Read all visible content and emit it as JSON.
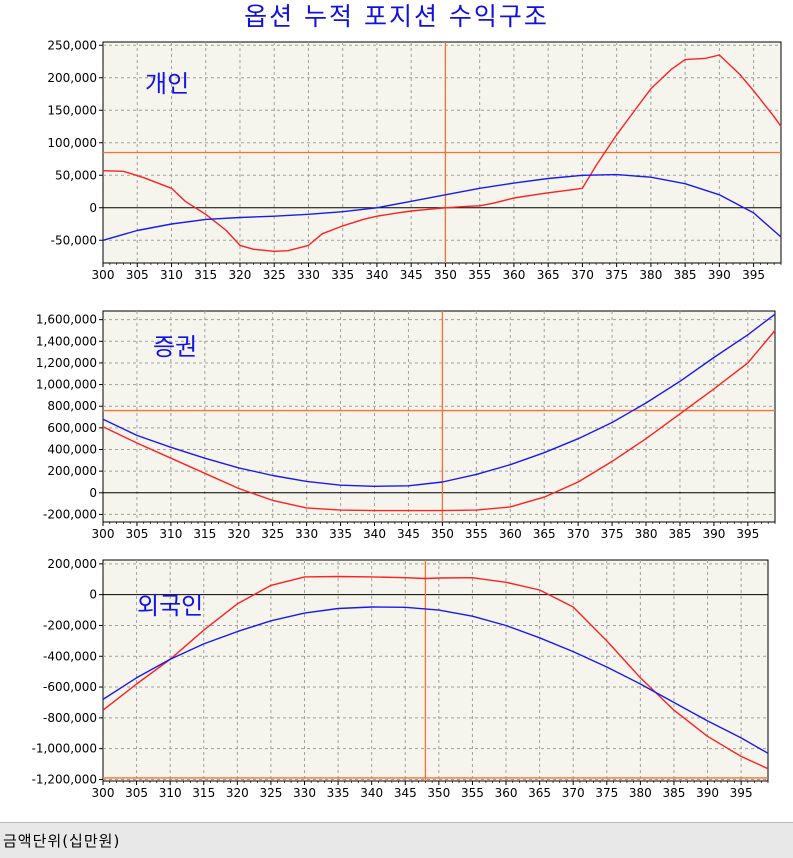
{
  "page": {
    "title": "옵션 누적 포지션 수익구조",
    "footer": "금액단위(십만원)"
  },
  "colors": {
    "series_red": "#ff2020",
    "series_blue": "#1a1aee",
    "reference_line": "#ff7030",
    "grid": "#a0a0a0",
    "plot_bg": "#f5f5ee",
    "label_blue": "#1212e6"
  },
  "chart_data": [
    {
      "type": "line",
      "title": "개인",
      "xlim": [
        300,
        399
      ],
      "ylim": [
        -85000,
        255000
      ],
      "x_ticks": [
        300,
        305,
        310,
        315,
        320,
        325,
        330,
        335,
        340,
        345,
        350,
        355,
        360,
        365,
        370,
        375,
        380,
        385,
        390,
        395
      ],
      "y_ticks": [
        -50000,
        0,
        50000,
        100000,
        150000,
        200000,
        250000
      ],
      "y_tick_labels": [
        "-50,000",
        "0",
        "50,000",
        "100,000",
        "150,000",
        "200,000",
        "250,000"
      ],
      "hline": 85000,
      "vline": 350,
      "grid": true,
      "series": [
        {
          "color": "#ff2020",
          "x": [
            300,
            303,
            306,
            310,
            312,
            315,
            318,
            320,
            322,
            325,
            327,
            330,
            332,
            335,
            338,
            340,
            343,
            345,
            348,
            350,
            353,
            355,
            357,
            360,
            363,
            365,
            368,
            370,
            372,
            375,
            378,
            380,
            383,
            385,
            388,
            390,
            393,
            395,
            398,
            399
          ],
          "y": [
            57000,
            56000,
            46000,
            30000,
            10000,
            -10000,
            -35000,
            -58000,
            -64000,
            -67000,
            -66000,
            -58000,
            -40000,
            -28000,
            -18000,
            -13000,
            -8000,
            -5000,
            -2000,
            0,
            2000,
            3000,
            7000,
            15000,
            20000,
            23000,
            27000,
            30000,
            65000,
            112000,
            155000,
            183000,
            213000,
            228000,
            230000,
            235000,
            205000,
            180000,
            140000,
            125000
          ]
        },
        {
          "color": "#1a1aee",
          "x": [
            300,
            305,
            310,
            315,
            320,
            325,
            330,
            335,
            340,
            345,
            350,
            355,
            360,
            365,
            370,
            375,
            380,
            385,
            390,
            395,
            399
          ],
          "y": [
            -50000,
            -35000,
            -25000,
            -18000,
            -15000,
            -13000,
            -10000,
            -6000,
            0,
            10000,
            20000,
            30000,
            38000,
            45000,
            50000,
            51000,
            47000,
            37000,
            20000,
            -8000,
            -45000
          ]
        }
      ]
    },
    {
      "type": "line",
      "title": "증권",
      "xlim": [
        300,
        399
      ],
      "ylim": [
        -270000,
        1680000
      ],
      "x_ticks": [
        300,
        305,
        310,
        315,
        320,
        325,
        330,
        335,
        340,
        345,
        350,
        355,
        360,
        365,
        370,
        375,
        380,
        385,
        390,
        395
      ],
      "y_ticks": [
        -200000,
        0,
        200000,
        400000,
        600000,
        800000,
        1000000,
        1200000,
        1400000,
        1600000
      ],
      "y_tick_labels": [
        "-200,000",
        "0",
        "200,000",
        "400,000",
        "600,000",
        "800,000",
        "1,000,000",
        "1,200,000",
        "1,400,000",
        "1,600,000"
      ],
      "hline": 760000,
      "vline": 350,
      "grid": true,
      "series": [
        {
          "color": "#ff2020",
          "x": [
            300,
            305,
            310,
            315,
            320,
            325,
            330,
            335,
            340,
            345,
            350,
            355,
            360,
            365,
            370,
            375,
            380,
            385,
            390,
            395,
            399
          ],
          "y": [
            610000,
            460000,
            320000,
            180000,
            40000,
            -70000,
            -140000,
            -160000,
            -165000,
            -165000,
            -165000,
            -160000,
            -130000,
            -40000,
            100000,
            290000,
            500000,
            730000,
            960000,
            1200000,
            1500000
          ]
        },
        {
          "color": "#1a1aee",
          "x": [
            300,
            305,
            310,
            315,
            320,
            325,
            330,
            335,
            340,
            345,
            350,
            355,
            360,
            365,
            370,
            375,
            380,
            385,
            390,
            395,
            399
          ],
          "y": [
            680000,
            530000,
            420000,
            320000,
            230000,
            160000,
            105000,
            70000,
            60000,
            65000,
            100000,
            170000,
            260000,
            370000,
            500000,
            650000,
            830000,
            1030000,
            1250000,
            1460000,
            1650000
          ]
        }
      ]
    },
    {
      "type": "line",
      "title": "외국인",
      "xlim": [
        300,
        399
      ],
      "ylim": [
        -1210000,
        225000
      ],
      "x_ticks": [
        300,
        305,
        310,
        315,
        320,
        325,
        330,
        335,
        340,
        345,
        350,
        355,
        360,
        365,
        370,
        375,
        380,
        385,
        390,
        395
      ],
      "y_ticks": [
        -1200000,
        -1000000,
        -800000,
        -600000,
        -400000,
        -200000,
        0,
        200000
      ],
      "y_tick_labels": [
        "-1,200,000",
        "-1,000,000",
        "-800,000",
        "-600,000",
        "-400,000",
        "-200,000",
        "0",
        "200,000"
      ],
      "hline": -1190000,
      "vline": 348,
      "grid": true,
      "series": [
        {
          "color": "#ff2020",
          "x": [
            300,
            305,
            310,
            315,
            320,
            325,
            330,
            335,
            340,
            345,
            348,
            350,
            355,
            360,
            365,
            370,
            375,
            380,
            385,
            390,
            395,
            399
          ],
          "y": [
            -750000,
            -580000,
            -420000,
            -230000,
            -60000,
            60000,
            115000,
            118000,
            115000,
            110000,
            105000,
            108000,
            110000,
            80000,
            30000,
            -80000,
            -300000,
            -540000,
            -750000,
            -920000,
            -1050000,
            -1130000
          ]
        },
        {
          "color": "#1a1aee",
          "x": [
            300,
            305,
            310,
            315,
            320,
            325,
            330,
            335,
            340,
            345,
            350,
            355,
            360,
            365,
            370,
            375,
            380,
            385,
            390,
            395,
            399
          ],
          "y": [
            -680000,
            -540000,
            -420000,
            -320000,
            -240000,
            -170000,
            -120000,
            -90000,
            -80000,
            -82000,
            -100000,
            -140000,
            -200000,
            -280000,
            -370000,
            -470000,
            -580000,
            -700000,
            -820000,
            -930000,
            -1030000
          ]
        }
      ]
    }
  ]
}
